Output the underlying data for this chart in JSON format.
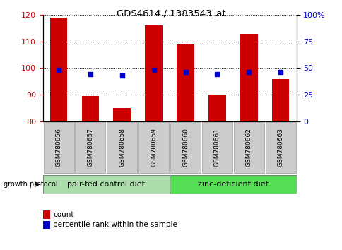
{
  "title": "GDS4614 / 1383543_at",
  "samples": [
    "GSM780656",
    "GSM780657",
    "GSM780658",
    "GSM780659",
    "GSM780660",
    "GSM780661",
    "GSM780662",
    "GSM780663"
  ],
  "counts": [
    119,
    89.5,
    85,
    116,
    109,
    90,
    113,
    96
  ],
  "percentiles": [
    48,
    44,
    43,
    48,
    46,
    44,
    46,
    46
  ],
  "ylim_left": [
    80,
    120
  ],
  "ylim_right": [
    0,
    100
  ],
  "yticks_left": [
    80,
    90,
    100,
    110,
    120
  ],
  "yticks_right": [
    0,
    25,
    50,
    75,
    100
  ],
  "ytick_labels_right": [
    "0",
    "25",
    "50",
    "75",
    "100%"
  ],
  "bar_color": "#cc0000",
  "dot_color": "#0000cc",
  "group1_label": "pair-fed control diet",
  "group2_label": "zinc-deficient diet",
  "group1_color": "#aaddaa",
  "group2_color": "#55dd55",
  "legend_count_label": "count",
  "legend_pct_label": "percentile rank within the sample",
  "growth_protocol_label": "growth protocol",
  "tick_label_color_left": "#cc0000",
  "tick_label_color_right": "#0000cc",
  "label_box_color": "#cccccc",
  "fig_width": 4.85,
  "fig_height": 3.54,
  "dpi": 100
}
